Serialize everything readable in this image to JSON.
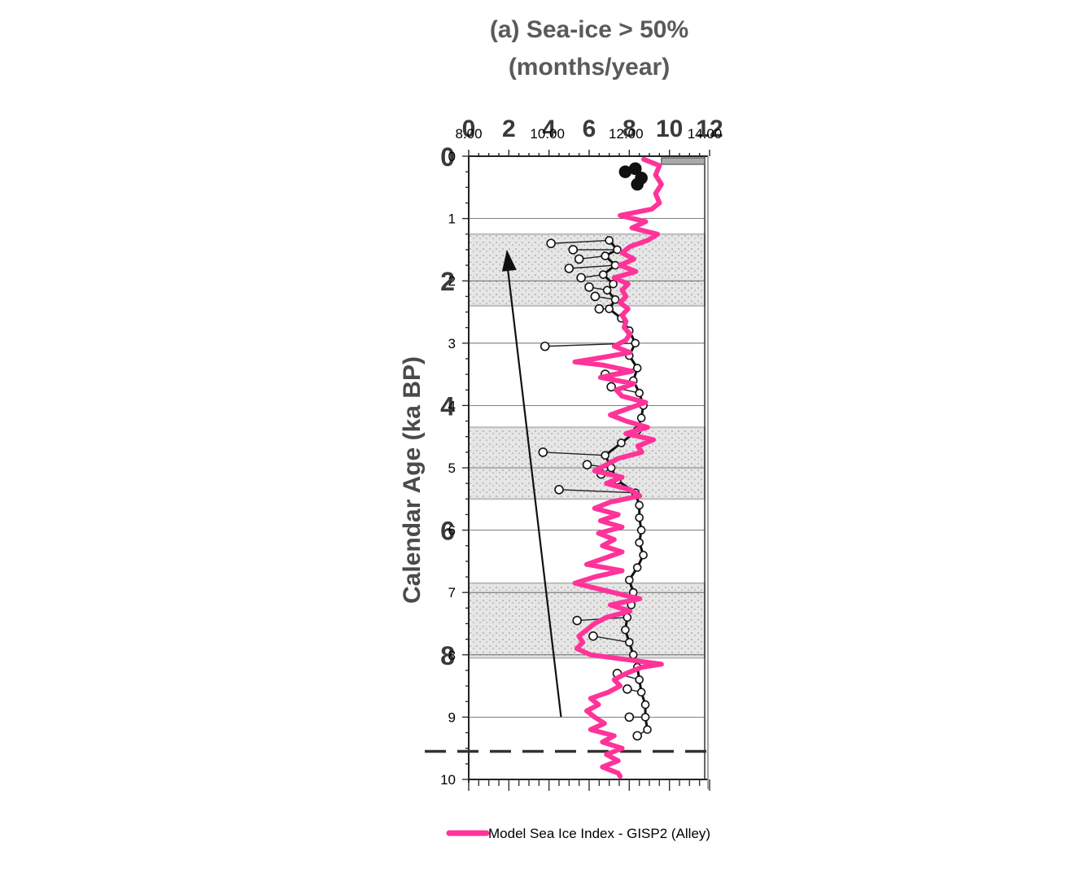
{
  "chart_data": {
    "type": "line",
    "title_line1": "(a) Sea-ice > 50%",
    "title_line2": "(months/year)",
    "ylabel": "Calendar Age (ka BP)",
    "x_axis_top_primary": {
      "ticks": [
        "0",
        "2",
        "4",
        "6",
        "8",
        "10",
        "12"
      ],
      "range": [
        0,
        12
      ]
    },
    "x_axis_top_secondary": {
      "ticks": [
        "8.00",
        "10.00",
        "12.00",
        "14.00"
      ],
      "range": [
        8,
        14
      ]
    },
    "y_axis": {
      "primary_ticks": [
        "0",
        "2",
        "4",
        "6",
        "8"
      ],
      "secondary_ticks": [
        "0",
        "1",
        "2",
        "3",
        "4",
        "5",
        "6",
        "7",
        "8",
        "9",
        "10"
      ],
      "range": [
        0,
        10
      ],
      "reversed": true
    },
    "shaded_intervals_ka": [
      [
        1.25,
        2.4
      ],
      [
        4.35,
        5.5
      ],
      [
        6.85,
        8.05
      ]
    ],
    "dashed_line_ka": 9.55,
    "arrow": {
      "from": {
        "x": 4.6,
        "age": 9.0
      },
      "to": {
        "x": 1.9,
        "age": 1.5
      }
    },
    "grid": true,
    "series": [
      {
        "name": "Model Sea Ice Index - GISP2 (Alley)",
        "color": "#ff3399",
        "axis": "secondary",
        "points": [
          [
            0.05,
            12.45
          ],
          [
            0.15,
            12.85
          ],
          [
            0.3,
            12.75
          ],
          [
            0.45,
            12.9
          ],
          [
            0.6,
            12.75
          ],
          [
            0.75,
            12.85
          ],
          [
            0.85,
            12.65
          ],
          [
            0.95,
            11.85
          ],
          [
            1.05,
            12.5
          ],
          [
            1.15,
            12.15
          ],
          [
            1.25,
            12.8
          ],
          [
            1.35,
            12.55
          ],
          [
            1.45,
            12.1
          ],
          [
            1.55,
            11.9
          ],
          [
            1.65,
            12.2
          ],
          [
            1.75,
            11.85
          ],
          [
            1.85,
            12.25
          ],
          [
            1.95,
            11.7
          ],
          [
            2.05,
            12.05
          ],
          [
            2.15,
            11.9
          ],
          [
            2.25,
            12.0
          ],
          [
            2.35,
            11.85
          ],
          [
            2.45,
            12.05
          ],
          [
            2.55,
            11.9
          ],
          [
            2.65,
            12.0
          ],
          [
            2.75,
            11.95
          ],
          [
            2.85,
            12.1
          ],
          [
            2.95,
            12.0
          ],
          [
            3.05,
            11.7
          ],
          [
            3.15,
            12.1
          ],
          [
            3.25,
            11.2
          ],
          [
            3.3,
            10.7
          ],
          [
            3.35,
            11.4
          ],
          [
            3.45,
            12.15
          ],
          [
            3.55,
            11.35
          ],
          [
            3.65,
            12.2
          ],
          [
            3.75,
            11.75
          ],
          [
            3.85,
            11.9
          ],
          [
            3.95,
            12.5
          ],
          [
            4.05,
            12.05
          ],
          [
            4.15,
            11.6
          ],
          [
            4.25,
            12.0
          ],
          [
            4.35,
            12.55
          ],
          [
            4.45,
            12.0
          ],
          [
            4.55,
            12.7
          ],
          [
            4.65,
            12.3
          ],
          [
            4.75,
            12.4
          ],
          [
            4.85,
            11.8
          ],
          [
            4.95,
            11.5
          ],
          [
            5.05,
            11.2
          ],
          [
            5.15,
            11.9
          ],
          [
            5.25,
            11.5
          ],
          [
            5.35,
            12.1
          ],
          [
            5.45,
            12.35
          ],
          [
            5.55,
            11.6
          ],
          [
            5.65,
            11.2
          ],
          [
            5.75,
            11.8
          ],
          [
            5.85,
            11.35
          ],
          [
            5.95,
            11.9
          ],
          [
            6.05,
            11.3
          ],
          [
            6.15,
            11.7
          ],
          [
            6.25,
            11.4
          ],
          [
            6.35,
            11.9
          ],
          [
            6.45,
            11.45
          ],
          [
            6.55,
            11.0
          ],
          [
            6.65,
            11.9
          ],
          [
            6.75,
            11.2
          ],
          [
            6.85,
            10.7
          ],
          [
            6.95,
            11.35
          ],
          [
            7.05,
            12.0
          ],
          [
            7.1,
            12.35
          ],
          [
            7.2,
            11.6
          ],
          [
            7.3,
            12.1
          ],
          [
            7.4,
            11.5
          ],
          [
            7.5,
            11.2
          ],
          [
            7.6,
            11.0
          ],
          [
            7.7,
            10.8
          ],
          [
            7.8,
            10.9
          ],
          [
            7.9,
            10.75
          ],
          [
            8.0,
            11.1
          ],
          [
            8.1,
            12.3
          ],
          [
            8.15,
            12.9
          ],
          [
            8.2,
            12.4
          ],
          [
            8.3,
            12.0
          ],
          [
            8.4,
            11.7
          ],
          [
            8.5,
            11.85
          ],
          [
            8.6,
            11.55
          ],
          [
            8.7,
            11.1
          ],
          [
            8.8,
            11.3
          ],
          [
            8.9,
            11.0
          ],
          [
            9.0,
            11.2
          ],
          [
            9.1,
            11.45
          ],
          [
            9.2,
            11.1
          ],
          [
            9.3,
            11.7
          ],
          [
            9.4,
            11.4
          ],
          [
            9.5,
            11.9
          ],
          [
            9.6,
            11.5
          ],
          [
            9.7,
            11.8
          ],
          [
            9.8,
            11.4
          ],
          [
            9.9,
            11.8
          ],
          [
            9.95,
            11.85
          ]
        ]
      },
      {
        "name": "",
        "color": "#111111",
        "axis": "primary",
        "points": [
          [
            0.2,
            8.3
          ],
          [
            0.25,
            7.8
          ],
          [
            0.35,
            8.6
          ],
          [
            0.45,
            8.4
          ],
          [
            1.35,
            7.0
          ],
          [
            1.5,
            7.4
          ],
          [
            1.6,
            6.8
          ],
          [
            1.75,
            7.3
          ],
          [
            1.9,
            6.7
          ],
          [
            2.05,
            7.2
          ],
          [
            2.15,
            6.9
          ],
          [
            2.3,
            7.3
          ],
          [
            2.45,
            7.0
          ],
          [
            2.6,
            7.6
          ],
          [
            2.8,
            8.0
          ],
          [
            3.0,
            8.3
          ],
          [
            3.2,
            8.0
          ],
          [
            3.4,
            8.4
          ],
          [
            3.6,
            8.2
          ],
          [
            3.8,
            8.5
          ],
          [
            4.0,
            8.7
          ],
          [
            4.2,
            8.6
          ],
          [
            4.4,
            8.4
          ],
          [
            4.6,
            7.6
          ],
          [
            4.8,
            6.8
          ],
          [
            5.0,
            7.1
          ],
          [
            5.2,
            7.4
          ],
          [
            5.4,
            8.3
          ],
          [
            5.6,
            8.5
          ],
          [
            5.8,
            8.5
          ],
          [
            6.0,
            8.6
          ],
          [
            6.2,
            8.5
          ],
          [
            6.4,
            8.7
          ],
          [
            6.6,
            8.4
          ],
          [
            6.8,
            8.0
          ],
          [
            7.0,
            8.2
          ],
          [
            7.2,
            8.1
          ],
          [
            7.4,
            7.9
          ],
          [
            7.6,
            7.8
          ],
          [
            7.8,
            8.0
          ],
          [
            8.0,
            8.2
          ],
          [
            8.2,
            8.4
          ],
          [
            8.4,
            8.5
          ],
          [
            8.6,
            8.6
          ],
          [
            8.8,
            8.8
          ],
          [
            9.0,
            8.8
          ],
          [
            9.2,
            8.9
          ]
        ]
      }
    ],
    "open_circle_excursions": [
      [
        1.4,
        4.1
      ],
      [
        1.5,
        5.2
      ],
      [
        1.65,
        5.5
      ],
      [
        1.8,
        5.0
      ],
      [
        1.95,
        5.6
      ],
      [
        2.1,
        6.0
      ],
      [
        2.25,
        6.3
      ],
      [
        2.45,
        6.5
      ],
      [
        3.05,
        3.8
      ],
      [
        3.5,
        6.8
      ],
      [
        3.7,
        7.1
      ],
      [
        4.75,
        3.7
      ],
      [
        4.95,
        5.9
      ],
      [
        5.1,
        6.6
      ],
      [
        5.35,
        4.5
      ],
      [
        7.45,
        5.4
      ],
      [
        7.7,
        6.2
      ],
      [
        8.3,
        7.4
      ],
      [
        8.55,
        7.9
      ],
      [
        9.0,
        8.0
      ],
      [
        9.3,
        8.4
      ]
    ]
  },
  "legend": {
    "label": "Model Sea Ice Index - GISP2 (Alley)",
    "color": "#ff3399"
  }
}
